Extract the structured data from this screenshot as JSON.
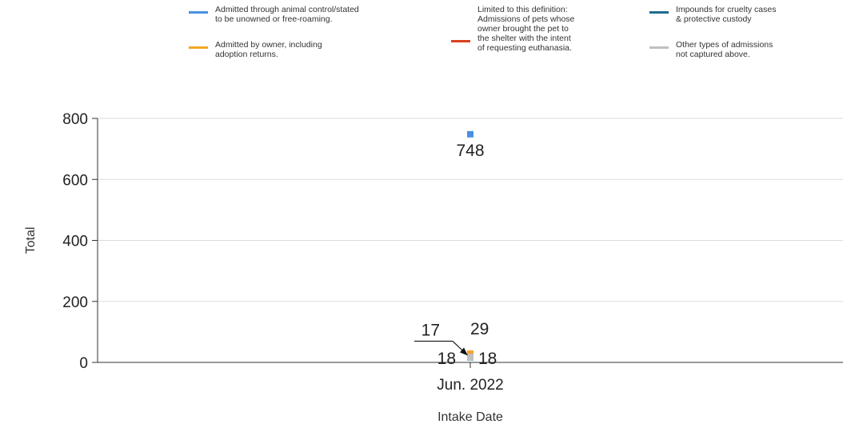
{
  "chart_data": {
    "type": "scatter",
    "title": "",
    "xlabel": "Intake Date",
    "ylabel": "Total",
    "ylim": [
      0,
      800
    ],
    "yticks": [
      0,
      200,
      400,
      600,
      800
    ],
    "grid": true,
    "legend_position": "top",
    "categories": [
      "Jun. 2022"
    ],
    "series": [
      {
        "name": "Admitted through animal control/stated to be unowned or free-roaming.",
        "color": "#4a90e2",
        "values": [
          748
        ]
      },
      {
        "name": "Admitted by owner, including adoption returns.",
        "color": "#f5a623",
        "values": [
          29
        ]
      },
      {
        "name": "Limited to this definition: Admissions of pets whose owner brought the pet to the shelter with the intent of requesting euthanasia.",
        "color": "#d9411e",
        "values": [
          18
        ]
      },
      {
        "name": "Impounds for cruelty cases & protective custody",
        "color": "#1f6b8e",
        "values": [
          17
        ]
      },
      {
        "name": "Other types of admissions not captured above.",
        "color": "#c0c0c0",
        "values": [
          18
        ]
      }
    ]
  },
  "legend": {
    "items": [
      {
        "lines": [
          "Admitted through animal control/stated",
          "to be unowned or free-roaming."
        ],
        "color": "#4a90e2"
      },
      {
        "lines": [
          "Admitted by owner, including",
          "adoption returns."
        ],
        "color": "#f5a623"
      },
      {
        "lines": [
          "Limited to this definition:",
          "Admissions of pets whose",
          "owner brought the pet to",
          "the shelter with the intent",
          "of requesting euthanasia."
        ],
        "color": "#d9411e"
      },
      {
        "lines": [
          "Impounds for cruelty cases",
          "& protective custody"
        ],
        "color": "#1f6b8e"
      },
      {
        "lines": [
          "Other types of admissions",
          "not captured above."
        ],
        "color": "#c0c0c0"
      }
    ]
  }
}
